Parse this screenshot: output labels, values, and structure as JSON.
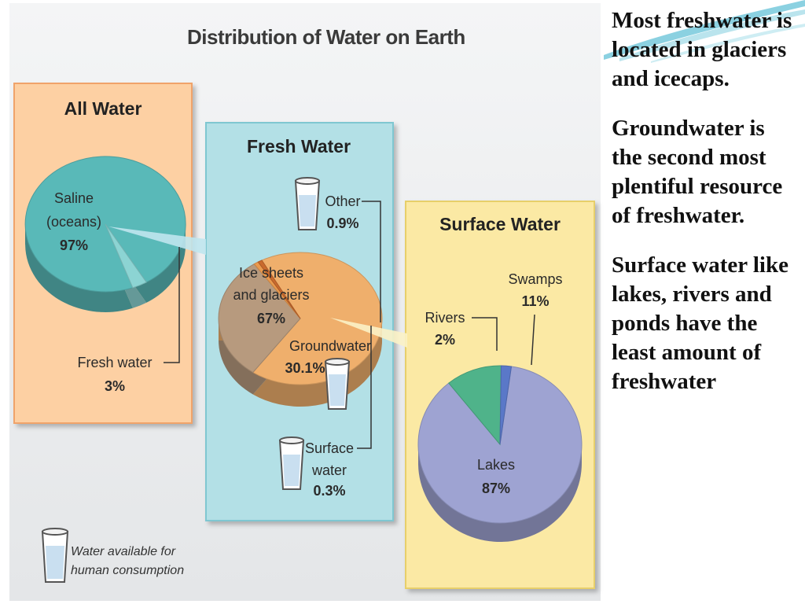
{
  "figure": {
    "title": "Distribution of Water on Earth",
    "legend_text_line1": "Water available for",
    "legend_text_line2": "human consumption"
  },
  "chart_data": [
    {
      "type": "pie",
      "title": "All Water",
      "slices": [
        {
          "label_lines": [
            "Saline",
            "(oceans)"
          ],
          "value": 97,
          "value_text": "97%",
          "color": "#59b9b8"
        },
        {
          "label_lines": [
            "Fresh water"
          ],
          "value": 3,
          "value_text": "3%",
          "color": "#8cd4d3"
        }
      ]
    },
    {
      "type": "pie",
      "title": "Fresh Water",
      "slices": [
        {
          "label_lines": [
            "Ice sheets",
            "and glaciers"
          ],
          "value": 67,
          "value_text": "67%",
          "color": "#efaf6c"
        },
        {
          "label_lines": [
            "Groundwater"
          ],
          "value": 30.1,
          "value_text": "30.1%",
          "color": "#b79a7e"
        },
        {
          "label_lines": [
            "Other"
          ],
          "value": 0.9,
          "value_text": "0.9%",
          "color": "#ea9a4e"
        },
        {
          "label_lines": [
            "Surface",
            "water"
          ],
          "value": 0.3,
          "value_text": "0.3%",
          "color": "#c96a2e"
        }
      ]
    },
    {
      "type": "pie",
      "title": "Surface Water",
      "slices": [
        {
          "label_lines": [
            "Lakes"
          ],
          "value": 87,
          "value_text": "87%",
          "color": "#9ea3d2"
        },
        {
          "label_lines": [
            "Swamps"
          ],
          "value": 11,
          "value_text": "11%",
          "color": "#4fb38a"
        },
        {
          "label_lines": [
            "Rivers"
          ],
          "value": 2,
          "value_text": "2%",
          "color": "#5a78c8"
        }
      ]
    }
  ],
  "bullets": [
    "Most freshwater  is located in glaciers and icecaps.",
    "Groundwater is the second most plentiful resource of freshwater.",
    "Surface water like lakes, rivers and ponds have the least amount of freshwater"
  ],
  "colors": {
    "panel_all": "#fdd0a3",
    "panel_fresh": "#b3e0e6",
    "panel_surface": "#fbe9a4",
    "backdrop": "#e9ebec"
  }
}
